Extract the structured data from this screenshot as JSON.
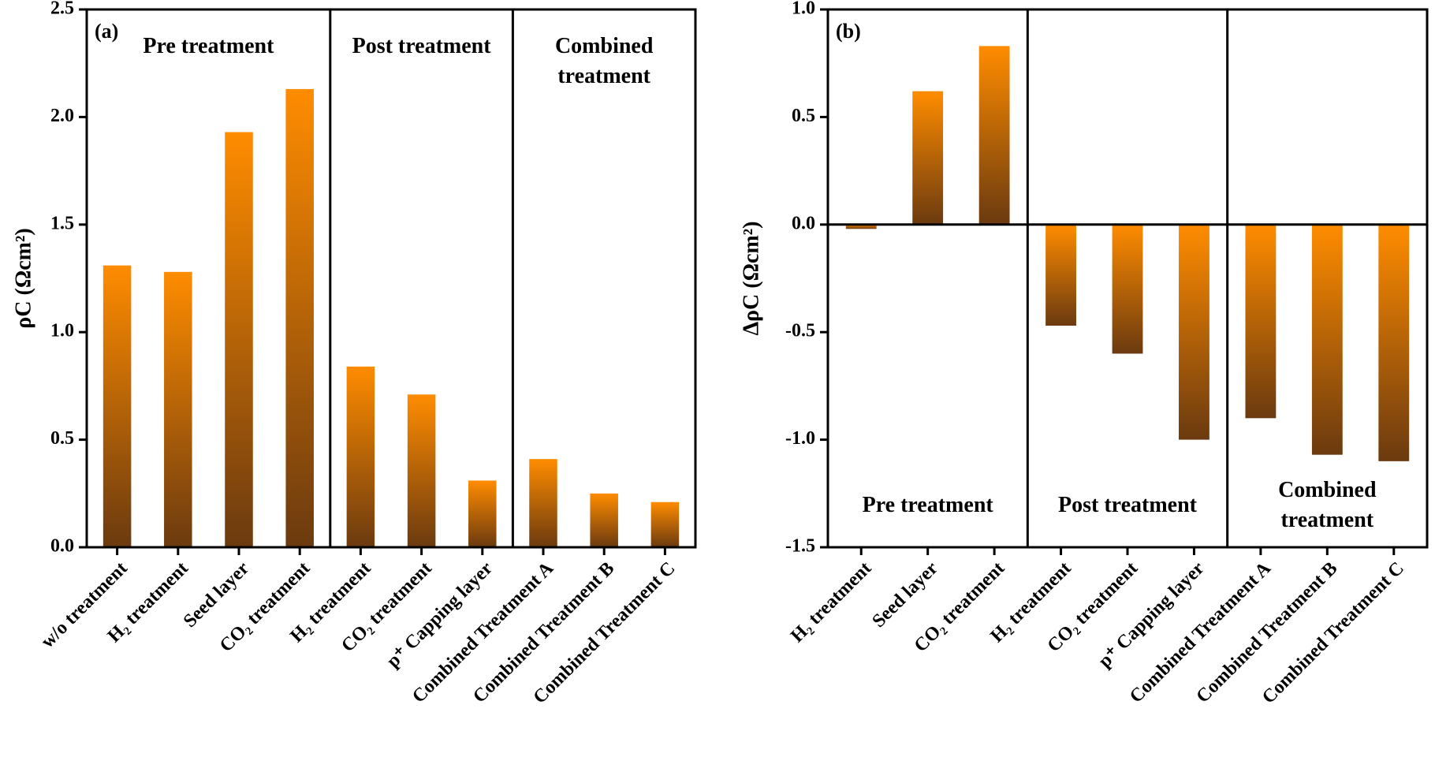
{
  "chart_data": [
    {
      "type": "bar",
      "label": "(a)",
      "ylabel": "ρC (Ωcm²)",
      "categories": [
        "w/o treatment",
        "H₂ treatment",
        "Seed layer",
        "CO₂ treatment",
        "H₂ treatment",
        "CO₂ treatment",
        "p⁺ Capping layer",
        "Combined Treatment A",
        "Combined Treatment B",
        "Combined Treatment C"
      ],
      "values": [
        1.31,
        1.28,
        1.93,
        2.13,
        0.84,
        0.71,
        0.31,
        0.41,
        0.25,
        0.21
      ],
      "ylim": [
        0,
        2.5
      ],
      "yticks": [
        {
          "value": 0,
          "label": "0.0"
        },
        0.5,
        {
          "value": 1,
          "label": "1.0"
        },
        1.5,
        {
          "value": 2,
          "label": "2.0"
        },
        2.5
      ],
      "annotations": [
        "Pre treatment",
        "Post treatment",
        "Combined treatment"
      ],
      "gradient": [
        "#ff8c00",
        "#6b3a0f"
      ]
    },
    {
      "type": "bar",
      "label": "(b)",
      "ylabel": "ΔρC (Ωcm²)",
      "categories": [
        "H₂ treatment",
        "Seed layer",
        "CO₂ treatment",
        "H₂ treatment",
        "CO₂ treatment",
        "p⁺ Capping layer",
        "Combined Treatment A",
        "Combined Treatment B",
        "Combined Treatment C"
      ],
      "values": [
        -0.02,
        0.62,
        0.83,
        -0.47,
        -0.6,
        -1.0,
        -0.9,
        -1.07,
        -1.1
      ],
      "ylim": [
        -1.5,
        1
      ],
      "yticks": [
        -1.5,
        {
          "value": -1,
          "label": "-1.0"
        },
        -0.5,
        {
          "value": 0,
          "label": "0.0"
        },
        0.5,
        {
          "value": 1,
          "label": "1.0"
        }
      ],
      "annotations": [
        "Pre treatment",
        "Post treatment",
        "Combined treatment"
      ],
      "gradient": [
        "#ff8c00",
        "#6b3a0f"
      ]
    }
  ]
}
